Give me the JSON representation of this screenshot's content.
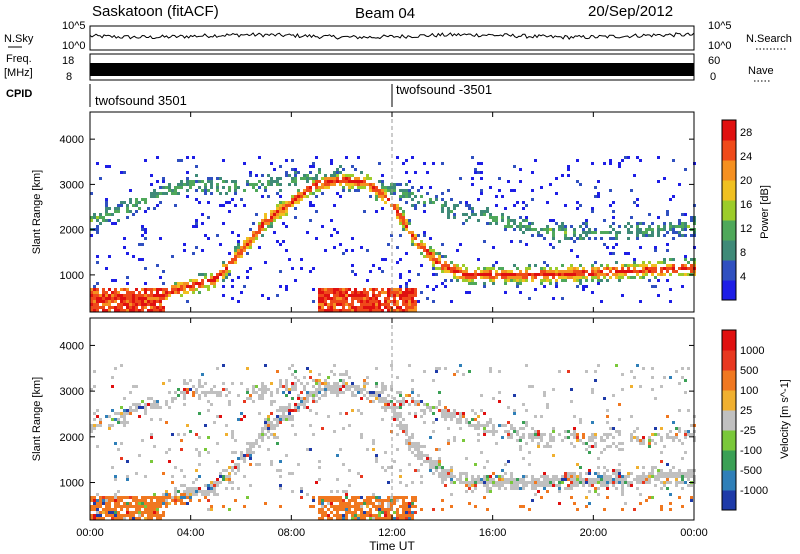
{
  "chart_data": {
    "type": "heatmap",
    "header": {
      "station": "Saskatoon (fitACF)",
      "beam": "Beam 04",
      "date": "20/Sep/2012"
    },
    "strips": {
      "nsky": {
        "label": "N.Sky",
        "ticks": [
          "10^5",
          "10^0"
        ],
        "right_label": "N.Search"
      },
      "freq": {
        "label": "Freq.",
        "unit": "[MHz]",
        "ticks": [
          "18",
          "8"
        ],
        "right_ticks": [
          "60",
          "0"
        ],
        "right_label": "Nave"
      }
    },
    "cpid": {
      "label": "CPID",
      "segments": [
        "twofsound 3501",
        "twofsound -3501"
      ],
      "segment_start_hours": [
        0,
        12
      ]
    },
    "x_ticks": [
      "00:00",
      "04:00",
      "08:00",
      "12:00",
      "16:00",
      "20:00",
      "00:00"
    ],
    "x_tick_hours": [
      0,
      4,
      8,
      12,
      16,
      20,
      24
    ],
    "xlabel": "Time UT",
    "xlim_hours": [
      0,
      24
    ],
    "panels": [
      {
        "name": "power",
        "ylabel": "Slant Range [km]",
        "ylim": [
          180,
          4600
        ],
        "y_ticks": [
          1000,
          2000,
          3000,
          4000
        ],
        "colorbar": {
          "label": "Power [dB]",
          "ticks": [
            "4",
            "8",
            "12",
            "16",
            "20",
            "24",
            "28"
          ],
          "tick_values": [
            4,
            8,
            12,
            16,
            20,
            24,
            28
          ],
          "range": [
            0,
            30
          ],
          "colors": [
            "#1e1ee6",
            "#3050c0",
            "#3f8a78",
            "#4fa85a",
            "#9ccc2a",
            "#f0c020",
            "#f59020",
            "#ef4a1a",
            "#e01010"
          ]
        }
      },
      {
        "name": "velocity",
        "ylabel": "Slant Range [km]",
        "ylim": [
          180,
          4600
        ],
        "y_ticks": [
          1000,
          2000,
          3000,
          4000
        ],
        "colorbar": {
          "label": "Velocity [m s^-1]",
          "ticks": [
            "1000",
            "500",
            "100",
            "25",
            "-25",
            "-100",
            "-500",
            "-1000"
          ],
          "colors": [
            "#1e3aa8",
            "#2f7fb8",
            "#3aa055",
            "#7ac83a",
            "#c0c0c0",
            "#f0b030",
            "#f07820",
            "#e83820",
            "#e01010"
          ]
        }
      }
    ],
    "echo_bands": [
      {
        "description": "near",
        "points": [
          [
            0,
            500
          ],
          [
            2,
            450
          ],
          [
            3,
            600
          ],
          [
            5,
            900
          ],
          [
            6,
            1500
          ],
          [
            7,
            2200
          ],
          [
            8,
            2600
          ],
          [
            9,
            3000
          ],
          [
            10,
            3100
          ],
          [
            11,
            3050
          ],
          [
            12,
            2600
          ],
          [
            13,
            1700
          ],
          [
            14,
            1200
          ],
          [
            15,
            1000
          ],
          [
            16,
            1000
          ],
          [
            18,
            1000
          ],
          [
            20,
            1050
          ],
          [
            22,
            1100
          ],
          [
            24,
            1150
          ]
        ]
      },
      {
        "description": "far",
        "points": [
          [
            0,
            2200
          ],
          [
            2,
            2600
          ],
          [
            4,
            3000
          ],
          [
            6,
            2900
          ],
          [
            8,
            3100
          ],
          [
            10,
            3200
          ],
          [
            12,
            2900
          ],
          [
            14,
            2500
          ],
          [
            16,
            2200
          ],
          [
            18,
            2000
          ],
          [
            20,
            1900
          ],
          [
            22,
            2000
          ],
          [
            24,
            2100
          ]
        ]
      }
    ]
  }
}
